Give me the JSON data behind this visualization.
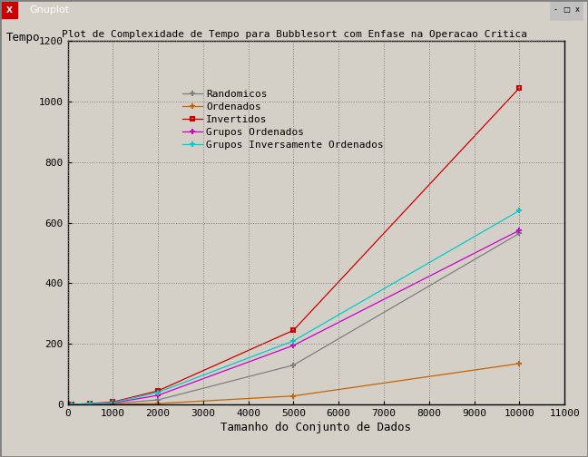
{
  "title": "Plot de Complexidade de Tempo para Bubblesort com Enfase na Operacao Critica",
  "ylabel": "Tempo",
  "xlabel": "Tamanho do Conjunto de Dados",
  "xlim": [
    0,
    11000
  ],
  "ylim": [
    0,
    1200
  ],
  "xticks": [
    0,
    1000,
    2000,
    3000,
    4000,
    5000,
    6000,
    7000,
    8000,
    9000,
    10000,
    11000
  ],
  "yticks": [
    0,
    200,
    400,
    600,
    800,
    1000,
    1200
  ],
  "window_bg": "#d4d0c8",
  "plot_bg_color": "#d4d0c8",
  "inner_plot_bg": "#d4d0c8",
  "titlebar_bg": "#000080",
  "titlebar_fg": "#ffffff",
  "series": [
    {
      "label": "Randomicos",
      "color": "#7f7f7f",
      "marker": "+",
      "x": [
        0,
        100,
        500,
        1000,
        2000,
        5000,
        10000
      ],
      "y": [
        0,
        0,
        1,
        3,
        15,
        130,
        565
      ]
    },
    {
      "label": "Ordenados",
      "color": "#c86400",
      "marker": "+",
      "x": [
        0,
        100,
        500,
        1000,
        2000,
        5000,
        10000
      ],
      "y": [
        0,
        0,
        0,
        1,
        3,
        28,
        135
      ]
    },
    {
      "label": "Invertidos",
      "color": "#cc0000",
      "marker": "s",
      "x": [
        0,
        100,
        500,
        1000,
        2000,
        5000,
        10000
      ],
      "y": [
        0,
        0,
        3,
        8,
        45,
        245,
        1045
      ]
    },
    {
      "label": "Grupos Ordenados",
      "color": "#cc00cc",
      "marker": "+",
      "x": [
        0,
        100,
        500,
        1000,
        2000,
        5000,
        10000
      ],
      "y": [
        0,
        0,
        2,
        5,
        30,
        195,
        575
      ]
    },
    {
      "label": "Grupos Inversamente Ordenados",
      "color": "#00cccc",
      "marker": "+",
      "x": [
        0,
        100,
        500,
        1000,
        2000,
        5000,
        10000
      ],
      "y": [
        0,
        0,
        2,
        6,
        40,
        210,
        640
      ]
    }
  ],
  "grid_color": "#808080",
  "tick_fontsize": 8,
  "label_fontsize": 9,
  "legend_fontsize": 8
}
